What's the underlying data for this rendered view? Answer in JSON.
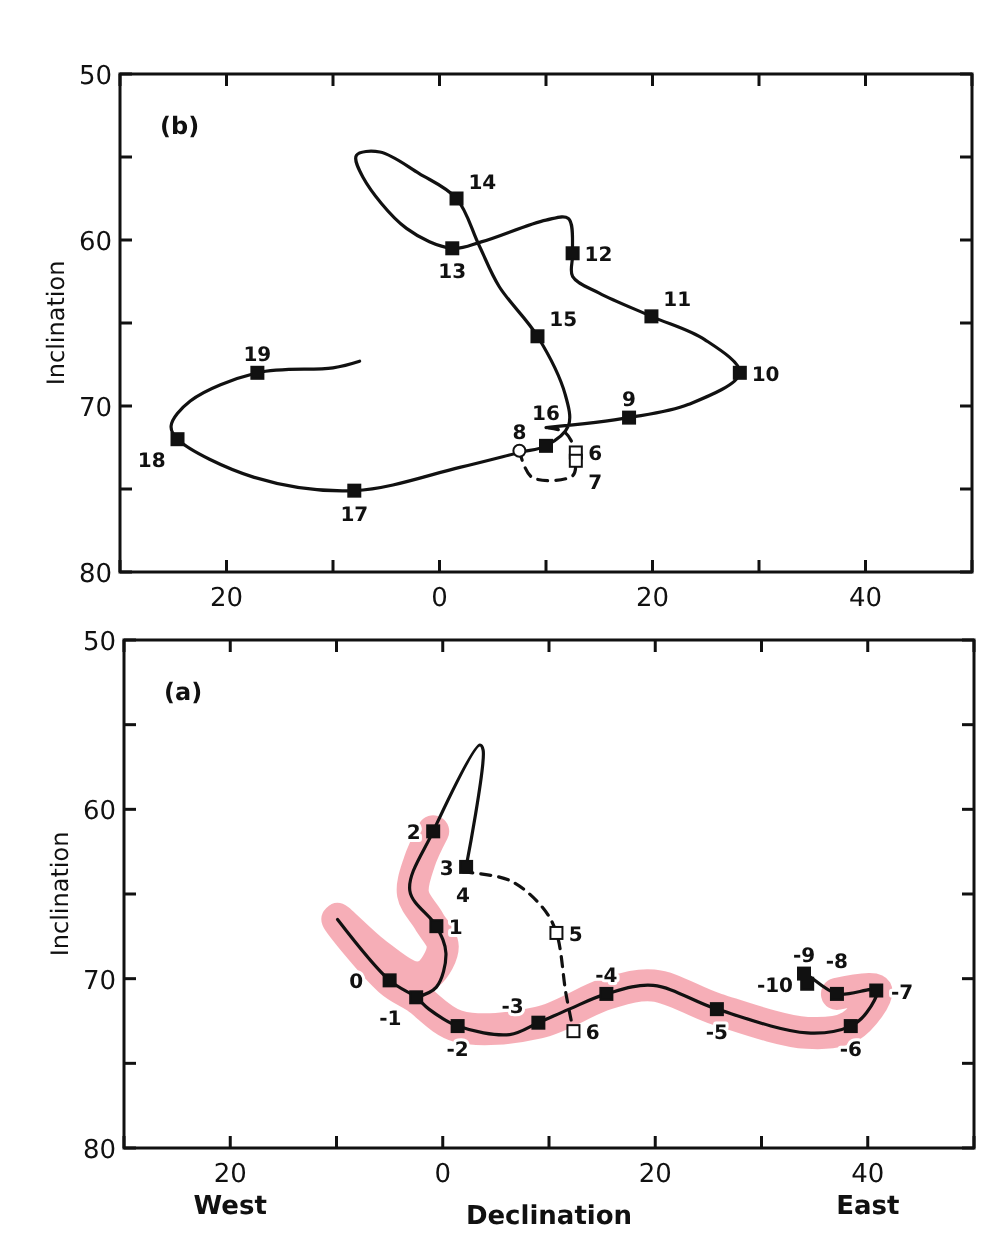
{
  "chart_data": [
    {
      "type": "line",
      "ylabel": "Inclination",
      "xlim": [
        -30,
        50
      ],
      "ylim": [
        80,
        50
      ],
      "xticks": [
        {
          "value": -30,
          "label": null
        },
        {
          "value": -20,
          "label": "20"
        },
        {
          "value": -10,
          "label": null
        },
        0,
        {
          "value": 10,
          "label": null
        },
        20,
        {
          "value": 30,
          "label": null
        },
        40,
        {
          "value": 50,
          "label": null
        }
      ],
      "yticks": [
        50,
        {
          "value": 55,
          "label": null
        },
        60,
        {
          "value": 65,
          "label": null
        },
        70,
        {
          "value": 75,
          "label": null
        },
        80
      ],
      "grid": false,
      "annotations": [
        "(b)",
        {
          "text": "6",
          "x": 12.8,
          "y": 72.8
        },
        {
          "text": "7",
          "x": 12.8,
          "y": 73.3
        },
        {
          "text": "8",
          "x": 7.5,
          "y": 72.7
        },
        {
          "text": "9",
          "x": 17.8,
          "y": 70.7
        },
        {
          "text": "10",
          "x": 28.2,
          "y": 68
        },
        {
          "text": "11",
          "x": 19.9,
          "y": 64.6
        },
        {
          "text": "12",
          "x": 12.5,
          "y": 60.8
        },
        {
          "text": "13",
          "x": 1.2,
          "y": 60.5
        },
        {
          "text": "14",
          "x": 1.6,
          "y": 57.5
        },
        {
          "text": "15",
          "x": 9.2,
          "y": 65.8
        },
        {
          "text": "16",
          "x": 10,
          "y": 72.4
        },
        {
          "text": "17",
          "x": -8,
          "y": 75.1
        },
        {
          "text": "18",
          "x": -24.6,
          "y": 72
        },
        {
          "text": "19",
          "x": -17.1,
          "y": 68
        }
      ],
      "series": [
        {
          "color": "#111111",
          "line_style": "dashed",
          "x": [
            7.5,
            8.7,
            12.5,
            12.8,
            12.8,
            11.8,
            10
          ],
          "values": [
            72.7,
            74.3,
            74.2,
            73.2,
            72.8,
            71.6,
            71.3
          ]
        },
        {
          "color": "#111111",
          "line_style": "solid",
          "x": [
            10,
            17.8,
            23.4,
            28.2,
            24.9,
            19.9,
            15,
            12.5,
            12.5,
            12.1,
            10,
            4,
            1.2,
            -3.1,
            -7.2,
            -7.8,
            -5.6,
            -1.9,
            1.6,
            3.7,
            5.6,
            9.2,
            11.8,
            12.1,
            10,
            7.5,
            1.9,
            -8,
            -17.4,
            -24.6,
            -25.2,
            -23.4,
            -17.1,
            -10,
            -7.5
          ],
          "values": [
            71.3,
            70.7,
            69.9,
            68,
            66,
            64.6,
            63.2,
            62.2,
            60.8,
            58.7,
            58.8,
            60.1,
            60.5,
            59.3,
            56.2,
            54.9,
            54.7,
            56,
            57.5,
            60.3,
            62.8,
            65.8,
            69.3,
            71.2,
            72.4,
            72.8,
            73.7,
            75.1,
            74.3,
            72,
            71.2,
            69.7,
            68,
            67.7,
            67.3
          ]
        },
        {
          "type": "scatter",
          "color": "#111111",
          "marker": "square",
          "x": [
            17.8,
            28.2,
            19.9,
            12.5,
            1.2,
            1.6,
            9.2,
            10,
            -8,
            -24.6,
            -17.1
          ],
          "values": [
            70.7,
            68,
            64.6,
            60.8,
            60.5,
            57.5,
            65.8,
            72.4,
            75.1,
            72,
            68
          ]
        },
        {
          "type": "scatter",
          "color": "#ffffff",
          "marker": "square",
          "x": [
            12.8,
            12.8
          ],
          "values": [
            72.8,
            73.3
          ]
        },
        {
          "type": "scatter",
          "color": "#ffffff",
          "marker": "circle",
          "x": [
            7.5
          ],
          "values": [
            72.7
          ]
        }
      ]
    },
    {
      "type": "line",
      "xlabel": "Declination",
      "ylabel": "Inclination",
      "xlim": [
        -30,
        50
      ],
      "ylim": [
        80,
        50
      ],
      "xticks": [
        {
          "value": -30,
          "label": null
        },
        {
          "value": -20,
          "label": "20"
        },
        {
          "value": -10,
          "label": null
        },
        0,
        {
          "value": 10,
          "label": null
        },
        20,
        {
          "value": 30,
          "label": null
        },
        40,
        {
          "value": 50,
          "label": null
        }
      ],
      "yticks": [
        50,
        {
          "value": 55,
          "label": null
        },
        60,
        {
          "value": 65,
          "label": null
        },
        70,
        {
          "value": 75,
          "label": null
        },
        80
      ],
      "grid": false,
      "annotations": [
        "(a)",
        "West",
        "East",
        {
          "text": "-10",
          "x": 34.3,
          "y": 70.3
        },
        {
          "text": "-9",
          "x": 34,
          "y": 69.7
        },
        {
          "text": "-8",
          "x": 37.1,
          "y": 70.9
        },
        {
          "text": "-7",
          "x": 40.8,
          "y": 70.7
        },
        {
          "text": "-6",
          "x": 38.4,
          "y": 72.8
        },
        {
          "text": "-5",
          "x": 25.8,
          "y": 71.8
        },
        {
          "text": "-4",
          "x": 15.4,
          "y": 70.9
        },
        {
          "text": "-3",
          "x": 9,
          "y": 72.6
        },
        {
          "text": "-2",
          "x": 1.4,
          "y": 72.8
        },
        {
          "text": "-1",
          "x": -2.5,
          "y": 71.1
        },
        {
          "text": "0",
          "x": -5,
          "y": 70.1
        },
        {
          "text": "1",
          "x": -0.6,
          "y": 66.9
        },
        {
          "text": "2",
          "x": -0.9,
          "y": 61.3
        },
        {
          "text": "3",
          "x": 2.2,
          "y": 63.4
        },
        {
          "text": "4",
          "x": 1.9,
          "y": 63.7
        },
        {
          "text": "5",
          "x": 10.7,
          "y": 67.3
        },
        {
          "text": "6",
          "x": 12.3,
          "y": 73.1
        }
      ],
      "series": [
        {
          "color": "#f4a0aa",
          "line_style": "solid",
          "marker": "none",
          "x": [
            -0.9,
            -2.2,
            -2.8,
            -1.3,
            0,
            -1.3,
            -2.8,
            -6.3,
            -9.9,
            -5,
            -2.5,
            1.4,
            9,
            15.4,
            19.8,
            25.8,
            34.3,
            38.4,
            40.8,
            37.1
          ],
          "values": [
            61.3,
            63.1,
            65,
            66.6,
            68.1,
            69.7,
            69.9,
            68.5,
            66.5,
            70.1,
            71.1,
            72.8,
            72.6,
            70.9,
            70.4,
            71.8,
            73.2,
            72.8,
            70.7,
            70.9
          ]
        },
        {
          "color": "#111111",
          "line_style": "solid",
          "x": [
            34.3,
            34,
            37.1,
            40.8,
            39.9,
            38.4,
            34.3,
            25.8,
            19.8,
            15.4,
            11.9,
            9,
            6.3,
            1.4,
            -1.3,
            -2.5,
            -5,
            -9.9
          ],
          "values": [
            70.3,
            69.7,
            70.9,
            70.7,
            72,
            72.8,
            73.2,
            71.8,
            70.4,
            70.9,
            71.8,
            72.6,
            73.3,
            72.8,
            71.8,
            71.1,
            70.1,
            66.5
          ]
        },
        {
          "color": "#111111",
          "line_style": "solid",
          "x": [
            -2.5,
            -0.6,
            0.3,
            -0.6,
            -3.1,
            -0.9,
            3.5,
            3.8,
            2.2
          ],
          "values": [
            71.1,
            70.5,
            68.5,
            66.9,
            64.8,
            61.3,
            56.2,
            56.5,
            63.4
          ]
        },
        {
          "color": "#111111",
          "line_style": "dashed",
          "x": [
            1.9,
            6.3,
            9.4,
            10.7,
            11.6,
            12.3
          ],
          "values": [
            63.7,
            64.2,
            65.8,
            67.3,
            70.9,
            73.1
          ]
        },
        {
          "type": "scatter",
          "color": "#111111",
          "marker": "square",
          "x": [
            34.3,
            34,
            37.1,
            40.8,
            38.4,
            25.8,
            15.4,
            9,
            1.4,
            -2.5,
            -5,
            -0.6,
            -0.9,
            2.2
          ],
          "values": [
            70.3,
            69.7,
            70.9,
            70.7,
            72.8,
            71.8,
            70.9,
            72.6,
            72.8,
            71.1,
            70.1,
            66.9,
            61.3,
            63.4
          ]
        },
        {
          "type": "scatter",
          "color": "#ffffff",
          "marker": "square",
          "x": [
            10.7,
            12.3
          ],
          "values": [
            67.3,
            73.1
          ]
        }
      ]
    }
  ]
}
